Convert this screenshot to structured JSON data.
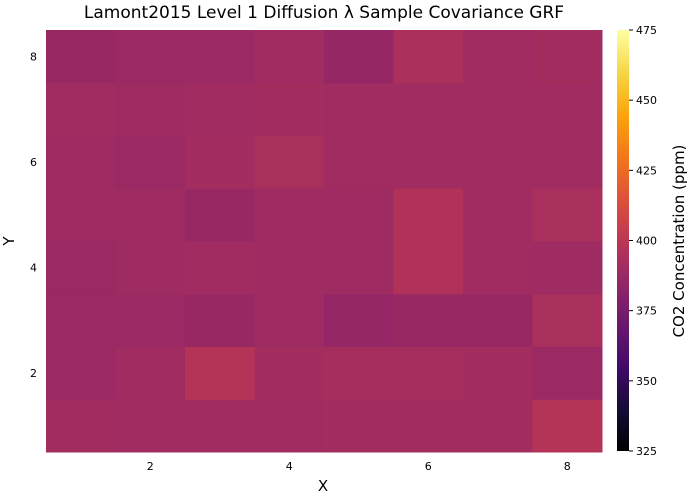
{
  "chart_data": {
    "type": "heatmap",
    "title": "Lamont2015 Level 1 Diffusion λ Sample Covariance GRF",
    "xlabel": "X",
    "ylabel": "Y",
    "xlim": [
      0.5,
      8.5
    ],
    "ylim": [
      0.5,
      8.5
    ],
    "x_ticks": [
      "2",
      "4",
      "6",
      "8"
    ],
    "y_ticks": [
      "2",
      "4",
      "6",
      "8"
    ],
    "grid": false,
    "colorbar": {
      "label": "CO2 Concentration (ppm)",
      "range": [
        325,
        475
      ],
      "ticks": [
        "325",
        "350",
        "375",
        "400",
        "425",
        "450",
        "475"
      ],
      "colormap": "inferno"
    },
    "x": [
      1,
      2,
      3,
      4,
      5,
      6,
      7,
      8
    ],
    "y": [
      1,
      2,
      3,
      4,
      5,
      6,
      7,
      8
    ],
    "z": [
      [
        391,
        390,
        390,
        390,
        391,
        391,
        391,
        397
      ],
      [
        388,
        390,
        397,
        391,
        392,
        392,
        391,
        388
      ],
      [
        388,
        388,
        387,
        389,
        386,
        387,
        387,
        393
      ],
      [
        388,
        389,
        390,
        389,
        389,
        396,
        390,
        389
      ],
      [
        389,
        389,
        387,
        389,
        389,
        396,
        390,
        393
      ],
      [
        389,
        388,
        391,
        393,
        390,
        390,
        390,
        390
      ],
      [
        390,
        389,
        390,
        391,
        390,
        390,
        390,
        390
      ],
      [
        387,
        388,
        388,
        390,
        386,
        394,
        390,
        391
      ]
    ]
  }
}
